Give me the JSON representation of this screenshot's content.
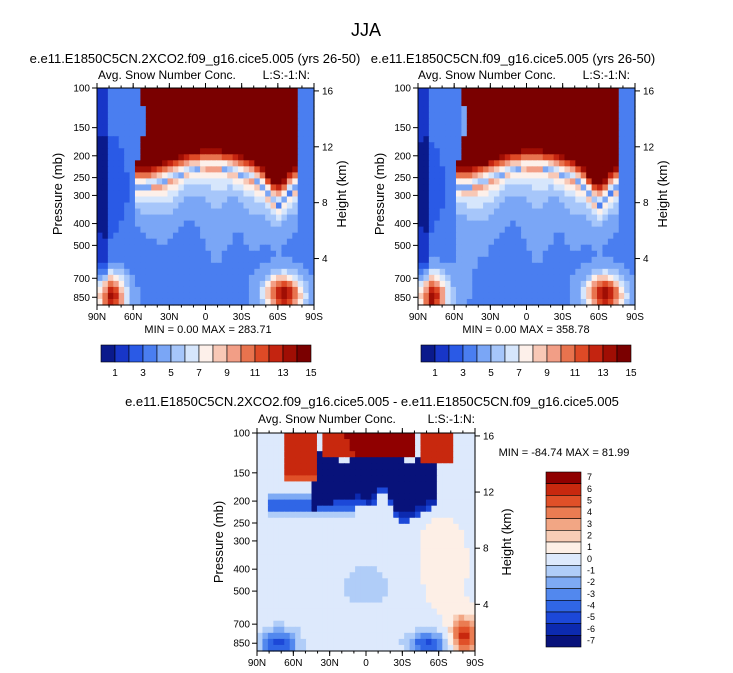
{
  "figure": {
    "title": "JJA"
  },
  "palette": {
    "cbar1": [
      "#0a1a8c",
      "#1836c8",
      "#2a5ae6",
      "#4a7ef0",
      "#7aa6f6",
      "#a6c6fa",
      "#d6e6fc",
      "#fdf0ea",
      "#f8c8b6",
      "#f29e86",
      "#e8734e",
      "#de4a26",
      "#c42410",
      "#a00e04",
      "#7a0000"
    ],
    "diff": [
      "#08127a",
      "#0c2ab0",
      "#1c48d8",
      "#3066e6",
      "#5288ee",
      "#7eaaf4",
      "#b0cdf8",
      "#dde9fc",
      "#fdefe6",
      "#f8cdb6",
      "#f2a684",
      "#ea7c52",
      "#e05028",
      "#c8280e",
      "#900000"
    ]
  },
  "chart_data": [
    {
      "type": "heatmap",
      "panel_title": "e.e11.E1850C5CN.2XCO2.f09_g16.cice5.005 (yrs 26-50)",
      "left_label": "Avg. Snow Number Conc.",
      "right_label": "L:S:-1:N:",
      "ylabel": "Pressure (mb)",
      "ylabel_right": "Height (km)",
      "x_ticks": [
        "90N",
        "60N",
        "30N",
        "0",
        "30S",
        "60S",
        "90S"
      ],
      "y_ticks": [
        "100",
        "150",
        "200",
        "250",
        "300",
        "400",
        "500",
        "700",
        "850"
      ],
      "y_ticks_right": [
        "16",
        "12",
        "8",
        "4"
      ],
      "minmax_text": "MIN =   0.00  MAX = 283.71",
      "colorbar_labels": [
        "1",
        "3",
        "5",
        "7",
        "9",
        "11",
        "13",
        "15"
      ]
    },
    {
      "type": "heatmap",
      "panel_title": "e.e11.E1850C5CN.f09_g16.cice5.005 (yrs 26-50)",
      "left_label": "Avg. Snow Number Conc.",
      "right_label": "L:S:-1:N:",
      "ylabel": "Pressure (mb)",
      "ylabel_right": "Height (km)",
      "x_ticks": [
        "90N",
        "60N",
        "30N",
        "0",
        "30S",
        "60S",
        "90S"
      ],
      "y_ticks": [
        "100",
        "150",
        "200",
        "250",
        "300",
        "400",
        "500",
        "700",
        "850"
      ],
      "y_ticks_right": [
        "16",
        "12",
        "8",
        "4"
      ],
      "minmax_text": "MIN =   0.00  MAX = 358.78",
      "colorbar_labels": [
        "1",
        "3",
        "5",
        "7",
        "9",
        "11",
        "13",
        "15"
      ]
    },
    {
      "type": "heatmap",
      "panel_title": "e.e11.E1850C5CN.2XCO2.f09_g16.cice5.005 - e.e11.E1850C5CN.f09_g16.cice5.005",
      "left_label": "Avg. Snow Number Conc.",
      "right_label": "L:S:-1:N:",
      "ylabel": "Pressure (mb)",
      "ylabel_right": "Height (km)",
      "x_ticks": [
        "90N",
        "60N",
        "30N",
        "0",
        "30S",
        "60S",
        "90S"
      ],
      "y_ticks": [
        "100",
        "150",
        "200",
        "250",
        "300",
        "400",
        "500",
        "700",
        "850"
      ],
      "y_ticks_right": [
        "16",
        "12",
        "8",
        "4"
      ],
      "minmax_text": "MIN = -84.74  MAX =  81.99",
      "colorbar_labels": [
        "7",
        "6",
        "5",
        "4",
        "3",
        "2",
        "1",
        "0",
        "-1",
        "-2",
        "-3",
        "-4",
        "-5",
        "-6",
        "-7"
      ]
    }
  ]
}
